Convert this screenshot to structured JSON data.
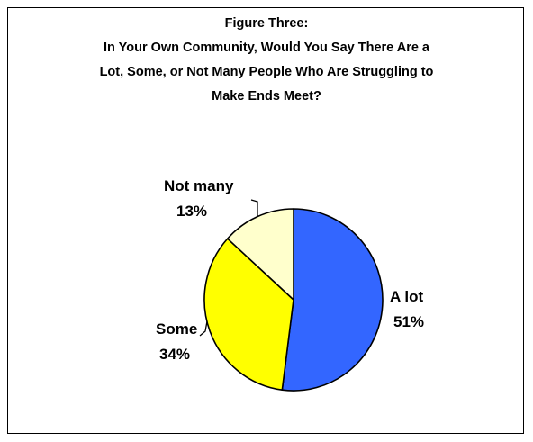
{
  "chart_data": {
    "type": "pie",
    "title_lines": [
      "Figure Three:",
      "In Your Own Community, Would You Say There Are a",
      "Lot, Some, or Not Many People Who Are Struggling to",
      "Make Ends Meet?"
    ],
    "slices": [
      {
        "label": "A lot",
        "value": 51,
        "value_label": "51%",
        "color": "#3366FF"
      },
      {
        "label": "Some",
        "value": 34,
        "value_label": "34%",
        "color": "#FFFF00"
      },
      {
        "label": "Not many",
        "value": 13,
        "value_label": "13%",
        "color": "#FFFFCC"
      }
    ],
    "legend": "none"
  }
}
